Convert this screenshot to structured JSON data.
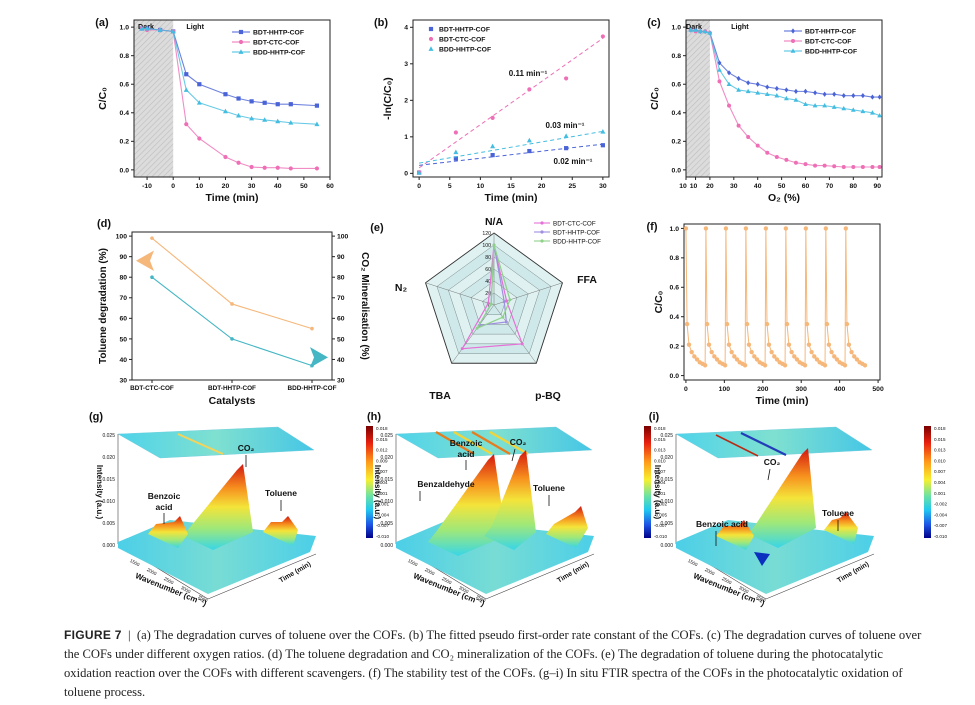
{
  "caption": {
    "label": "FIGURE 7",
    "sep": "|",
    "text": "(a) The degradation curves of toluene over the COFs. (b) The fitted pseudo first-order rate constant of the COFs. (c) The degradation curves of toluene over the COFs under different oxygen ratios. (d) The toluene degradation and CO₂ mineralization of the COFs. (e) The degradation of toluene during the photocatalytic oxidation reaction over the COFs with different scavengers. (f) The stability test of the COFs. (g–i) In situ FTIR spectra of the COFs in the photocatalytic oxidation of toluene process."
  },
  "colors": {
    "bdt_hhtp": "#4a63d6",
    "bdt_ctc": "#ee6fb6",
    "bdd_hhtp": "#43bde0",
    "orange": "#f6b77a",
    "teal": "#44b6c4"
  },
  "chart_data": [
    {
      "id": "a",
      "type": "line",
      "panel_label": "(a)",
      "xlabel": "Time (min)",
      "ylabel": "C/C0",
      "xlim": [
        -15,
        60
      ],
      "ylim": [
        -0.05,
        1.05
      ],
      "xticks": [
        "-10",
        "0",
        "10",
        "20",
        "30",
        "40",
        "50",
        "60"
      ],
      "yticks": [
        "0.0",
        "0.2",
        "0.4",
        "0.6",
        "0.8",
        "1.0"
      ],
      "regions": [
        "Dark",
        "Light"
      ],
      "x": [
        -12,
        -10,
        -5,
        0,
        5,
        10,
        20,
        25,
        30,
        35,
        40,
        45,
        55
      ],
      "series": [
        {
          "name": "BDT-HHTP-COF",
          "color": "#4a63d6",
          "marker": "square",
          "values": [
            0.99,
            0.99,
            0.98,
            0.97,
            0.67,
            0.6,
            0.53,
            0.5,
            0.48,
            0.47,
            0.46,
            0.46,
            0.45
          ]
        },
        {
          "name": "BDT-CTC-COF",
          "color": "#ee6fb6",
          "marker": "circle",
          "values": [
            0.99,
            0.98,
            0.98,
            0.97,
            0.32,
            0.22,
            0.09,
            0.05,
            0.02,
            0.015,
            0.015,
            0.01,
            0.01
          ]
        },
        {
          "name": "BDD-HHTP-COF",
          "color": "#43bde0",
          "marker": "triangle",
          "values": [
            0.99,
            0.99,
            0.98,
            0.97,
            0.56,
            0.47,
            0.41,
            0.38,
            0.36,
            0.35,
            0.34,
            0.33,
            0.32
          ]
        }
      ]
    },
    {
      "id": "b",
      "type": "scatter",
      "panel_label": "(b)",
      "xlabel": "Time (min)",
      "ylabel": "-ln(C/C0)",
      "xlim": [
        -1,
        31
      ],
      "ylim": [
        -0.1,
        4.2
      ],
      "xticks": [
        "0",
        "5",
        "10",
        "15",
        "20",
        "25",
        "30"
      ],
      "yticks": [
        "0",
        "1",
        "2",
        "3",
        "4"
      ],
      "x": [
        0,
        6,
        12,
        18,
        24,
        30
      ],
      "series": [
        {
          "name": "BDT-HHTP-COF",
          "color": "#4a63d6",
          "marker": "square",
          "values": [
            0.02,
            0.41,
            0.5,
            0.61,
            0.69,
            0.77
          ],
          "fit": [
            0.22,
            0.8
          ]
        },
        {
          "name": "BDT-CTC-COF",
          "color": "#ee6fb6",
          "marker": "circle",
          "values": [
            0.03,
            1.12,
            1.52,
            2.3,
            2.6,
            3.75
          ],
          "fit": [
            0.15,
            3.7
          ]
        },
        {
          "name": "BDD-HHTP-COF",
          "color": "#43bde0",
          "marker": "triangle",
          "values": [
            0.02,
            0.58,
            0.74,
            0.9,
            1.02,
            1.14
          ],
          "fit": [
            0.28,
            1.15
          ]
        }
      ],
      "annotations": [
        "0.11 min⁻¹",
        "0.03 min⁻¹",
        "0.02 min⁻¹"
      ]
    },
    {
      "id": "c",
      "type": "line",
      "panel_label": "(c)",
      "xlabel": "O2 (%)",
      "ylabel": "C/C0",
      "xlim": [
        10,
        92
      ],
      "ylim": [
        -0.05,
        1.05
      ],
      "xticks": [
        "10",
        "10",
        "20",
        "30",
        "40",
        "50",
        "60",
        "70",
        "80",
        "90"
      ],
      "yticks": [
        "0.0",
        "0.2",
        "0.4",
        "0.6",
        "0.8",
        "1.0"
      ],
      "regions": [
        "Dark",
        "Light"
      ],
      "x": [
        12,
        14,
        16,
        18,
        20,
        24,
        28,
        32,
        36,
        40,
        44,
        48,
        52,
        56,
        60,
        64,
        68,
        72,
        76,
        80,
        84,
        88,
        92
      ],
      "series": [
        {
          "name": "BDT-HHTP-COF",
          "color": "#4a63d6",
          "marker": "diamond",
          "values": [
            0.98,
            0.98,
            0.97,
            0.97,
            0.96,
            0.75,
            0.68,
            0.64,
            0.61,
            0.6,
            0.58,
            0.57,
            0.56,
            0.55,
            0.55,
            0.54,
            0.53,
            0.53,
            0.52,
            0.52,
            0.52,
            0.51,
            0.51
          ]
        },
        {
          "name": "BDT-CTC-COF",
          "color": "#ee6fb6",
          "marker": "circle",
          "values": [
            0.98,
            0.97,
            0.97,
            0.97,
            0.96,
            0.62,
            0.45,
            0.31,
            0.23,
            0.17,
            0.12,
            0.09,
            0.07,
            0.05,
            0.04,
            0.03,
            0.03,
            0.025,
            0.02,
            0.02,
            0.02,
            0.02,
            0.02
          ]
        },
        {
          "name": "BDD-HHTP-COF",
          "color": "#43bde0",
          "marker": "triangle",
          "values": [
            0.98,
            0.98,
            0.97,
            0.97,
            0.96,
            0.7,
            0.6,
            0.56,
            0.55,
            0.54,
            0.53,
            0.52,
            0.5,
            0.49,
            0.46,
            0.45,
            0.45,
            0.44,
            0.43,
            0.42,
            0.41,
            0.4,
            0.38
          ]
        }
      ]
    },
    {
      "id": "d",
      "type": "line",
      "panel_label": "(d)",
      "xlabel": "Catalysts",
      "ylabel": "Toluene degradation (%)",
      "ylabel2": "CO2 Mineralisation (%)",
      "ylim": [
        30,
        102
      ],
      "categories": [
        "BDT-CTC-COF",
        "BDT-HHTP-COF",
        "BDD-HHTP-COF"
      ],
      "yticks": [
        "30",
        "40",
        "50",
        "60",
        "70",
        "80",
        "90",
        "100"
      ],
      "series": [
        {
          "name": "Toluene degradation",
          "color": "#f6b77a",
          "values": [
            99,
            67,
            55
          ]
        },
        {
          "name": "CO2 Mineralisation",
          "color": "#44b6c4",
          "values": [
            80,
            50,
            37
          ]
        }
      ]
    },
    {
      "id": "e",
      "type": "radar",
      "panel_label": "(e)",
      "axes": [
        "N/A",
        "FFA",
        "p-BQ",
        "TBA",
        "N2"
      ],
      "rticks": [
        "0",
        "20",
        "40",
        "60",
        "80",
        "100",
        "120"
      ],
      "rmax": 120,
      "series": [
        {
          "name": "BDT-CTC-COF",
          "color": "#e571d7",
          "values": [
            100,
            22,
            80,
            90,
            10
          ]
        },
        {
          "name": "BDT-HHTP-COF",
          "color": "#9f8fe0",
          "values": [
            100,
            18,
            35,
            42,
            5
          ]
        },
        {
          "name": "BDD-HHTP-COF",
          "color": "#8fd18a",
          "values": [
            100,
            28,
            25,
            48,
            5
          ]
        }
      ]
    },
    {
      "id": "f",
      "type": "line",
      "panel_label": "(f)",
      "xlabel": "Time (min)",
      "ylabel": "C/C0",
      "xlim": [
        -5,
        505
      ],
      "ylim": [
        -0.03,
        1.03
      ],
      "xticks": [
        "0",
        "100",
        "200",
        "300",
        "400",
        "500"
      ],
      "yticks": [
        "0.0",
        "0.2",
        "0.4",
        "0.6",
        "0.8",
        "1.0"
      ],
      "cycles": 9,
      "cycle_length": 52,
      "cycle_shape": {
        "t": [
          0,
          3,
          8,
          15,
          22,
          29,
          36,
          43,
          50
        ],
        "v": [
          1.0,
          0.35,
          0.21,
          0.16,
          0.13,
          0.11,
          0.09,
          0.08,
          0.07
        ]
      },
      "color": "#f6b77a"
    },
    {
      "id": "g",
      "type": "heatmap",
      "panel_label": "(g)",
      "zlabel": "Intensity (a.u.)",
      "xlabel": "Wavenumber (cm⁻¹)",
      "ylabel": "Time (min)",
      "zticks": [
        "0.025",
        "0.020",
        "0.015",
        "0.010",
        "0.005",
        "0.000"
      ],
      "xticks": [
        "1500",
        "2000",
        "2500",
        "3000",
        "3500"
      ],
      "colorbar": [
        "0.018",
        "0.015",
        "0.012",
        "0.009",
        "0.007",
        "0.004",
        "0.001",
        "-0.001",
        "-0.004",
        "-0.007",
        "-0.010"
      ],
      "annotations": [
        "CO2",
        "Benzoic\nacid",
        "Toluene"
      ]
    },
    {
      "id": "h",
      "type": "heatmap",
      "panel_label": "(h)",
      "zlabel": "Intensity (a.u.)",
      "xlabel": "Wavenumber (cm⁻¹)",
      "ylabel": "Time (min)",
      "zticks": [
        "0.025",
        "0.020",
        "0.015",
        "0.010",
        "0.005",
        "0.000"
      ],
      "xticks": [
        "1500",
        "2000",
        "2500",
        "3000",
        "3500"
      ],
      "colorbar": [
        "0.018",
        "0.015",
        "0.013",
        "0.010",
        "0.007",
        "0.004",
        "0.001",
        "-0.002",
        "-0.005",
        "-0.007",
        "-0.010"
      ],
      "annotations": [
        "Benzoic\nacid",
        "CO2",
        "Benzaldehyde",
        "Toluene"
      ]
    },
    {
      "id": "i",
      "type": "heatmap",
      "panel_label": "(i)",
      "zlabel": "Intensity (a.u.)",
      "xlabel": "Wavenumber (cm⁻¹)",
      "ylabel": "Time (min)",
      "zticks": [
        "0.025",
        "0.020",
        "0.015",
        "0.010",
        "0.005",
        "0.000"
      ],
      "xticks": [
        "1500",
        "2000",
        "2500",
        "3000",
        "3500"
      ],
      "colorbar": [
        "0.018",
        "0.015",
        "0.013",
        "0.010",
        "0.007",
        "0.004",
        "0.001",
        "-0.002",
        "-0.004",
        "-0.007",
        "-0.010"
      ],
      "annotations": [
        "CO2",
        "Benzoic acid",
        "Toluene"
      ]
    }
  ]
}
